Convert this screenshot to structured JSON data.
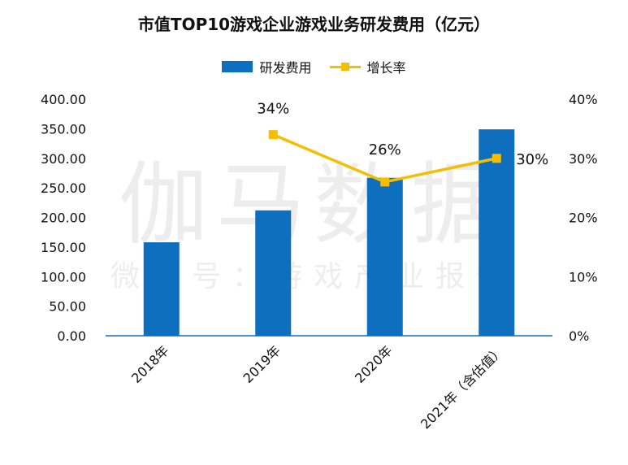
{
  "chart_data": {
    "type": "bar",
    "title": "市值TOP10游戏企业游戏业务研发费用（亿元）",
    "categories": [
      "2018年",
      "2019年",
      "2020年",
      "2021年（含估值）"
    ],
    "series": [
      {
        "name": "研发费用",
        "type": "bar",
        "axis": "left",
        "values": [
          158,
          212,
          267,
          349
        ]
      },
      {
        "name": "增长率",
        "type": "line",
        "axis": "right",
        "values": [
          null,
          34,
          26,
          30
        ],
        "labels": [
          "",
          "34%",
          "26%",
          "30%"
        ]
      }
    ],
    "y_left": {
      "range": [
        0,
        400
      ],
      "ticks": [
        "0.00",
        "50.00",
        "100.00",
        "150.00",
        "200.00",
        "250.00",
        "300.00",
        "350.00",
        "400.00"
      ]
    },
    "y_right": {
      "range": [
        0,
        40
      ],
      "ticks": [
        "0%",
        "10%",
        "20%",
        "30%",
        "40%"
      ]
    },
    "legend_position": "top-center",
    "grid": false,
    "colors": {
      "bar": "#0F6FBF",
      "line": "#F5BE00",
      "axis": "#0F6FBF"
    }
  },
  "watermark": {
    "main": "伽马数据",
    "sub": "微信号：游戏产业报告"
  }
}
